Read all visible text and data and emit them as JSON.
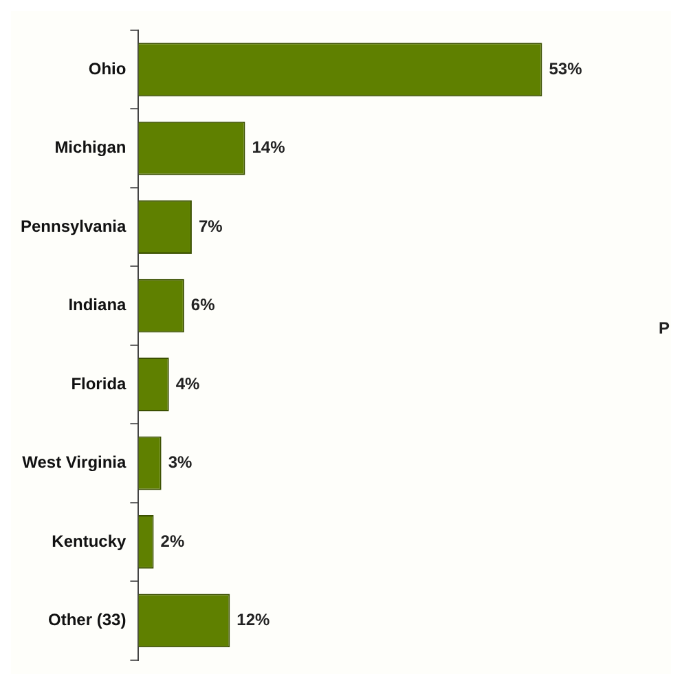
{
  "chart_data": {
    "type": "bar",
    "orientation": "horizontal",
    "categories": [
      "Ohio",
      "Michigan",
      "Pennsylvania",
      "Indiana",
      "Florida",
      "West Virginia",
      "Kentucky",
      "Other (33)"
    ],
    "values": [
      53,
      14,
      7,
      6,
      4,
      3,
      2,
      12
    ],
    "value_labels": [
      "53%",
      "14%",
      "7%",
      "6%",
      "4%",
      "3%",
      "2%",
      "12%"
    ],
    "color": "#5f8000",
    "tick_labels": "y",
    "grid": false,
    "legend": false,
    "annotations": [
      "P"
    ]
  }
}
